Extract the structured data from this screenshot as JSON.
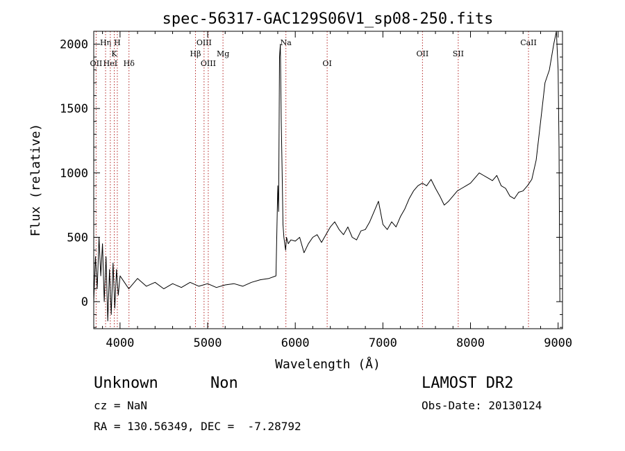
{
  "chart_data": {
    "type": "line",
    "title": "spec-56317-GAC129S06V1_sp08-250.fits",
    "xlabel": "Wavelength (Å)",
    "ylabel": "Flux (relative)",
    "xlim": [
      3700,
      9050
    ],
    "ylim": [
      -210,
      2100
    ],
    "x_ticks": [
      4000,
      5000,
      6000,
      7000,
      8000,
      9000
    ],
    "y_ticks": [
      0,
      500,
      1000,
      1500,
      2000
    ],
    "grid": false,
    "line_color": "#000000",
    "marker_color": "#b22222",
    "series": [
      {
        "x": [
          3700,
          3720,
          3740,
          3760,
          3780,
          3800,
          3820,
          3840,
          3860,
          3880,
          3900,
          3920,
          3940,
          3960,
          3980,
          4000,
          4050,
          4100,
          4200,
          4300,
          4400,
          4500,
          4600,
          4700,
          4800,
          4900,
          5000,
          5100,
          5200,
          5300,
          5400,
          5500,
          5600,
          5700,
          5780,
          5800,
          5810,
          5820,
          5830,
          5840,
          5850,
          5860,
          5870,
          5880,
          5890,
          5900,
          5920,
          5950,
          6000,
          6050,
          6100,
          6150,
          6200,
          6250,
          6300,
          6350,
          6400,
          6450,
          6500,
          6550,
          6600,
          6650,
          6700,
          6750,
          6800,
          6850,
          6900,
          6950,
          7000,
          7050,
          7100,
          7150,
          7200,
          7250,
          7300,
          7350,
          7400,
          7450,
          7500,
          7550,
          7600,
          7650,
          7700,
          7750,
          7800,
          7850,
          7900,
          7950,
          8000,
          8050,
          8100,
          8150,
          8200,
          8250,
          8300,
          8350,
          8400,
          8450,
          8500,
          8550,
          8600,
          8650,
          8700,
          8750,
          8800,
          8850,
          8900,
          8950,
          8980,
          9000,
          9010,
          9020
        ],
        "y": [
          0,
          350,
          100,
          500,
          200,
          450,
          0,
          350,
          -150,
          250,
          -100,
          300,
          -50,
          250,
          50,
          200,
          150,
          100,
          180,
          120,
          150,
          100,
          140,
          110,
          150,
          120,
          140,
          110,
          130,
          140,
          120,
          150,
          170,
          180,
          200,
          900,
          700,
          1900,
          2000,
          1400,
          1000,
          600,
          500,
          450,
          400,
          500,
          450,
          480,
          470,
          500,
          380,
          450,
          500,
          520,
          460,
          520,
          580,
          620,
          560,
          520,
          580,
          500,
          480,
          550,
          560,
          620,
          700,
          780,
          600,
          560,
          620,
          580,
          660,
          720,
          800,
          860,
          900,
          920,
          900,
          950,
          880,
          820,
          750,
          780,
          820,
          860,
          880,
          900,
          920,
          960,
          1000,
          980,
          960,
          940,
          980,
          900,
          880,
          820,
          800,
          850,
          860,
          900,
          950,
          1100,
          1400,
          1700,
          1800,
          2000,
          2100,
          1800,
          1200,
          0
        ]
      }
    ],
    "lines": [
      {
        "label": "OII",
        "x": 3727
      },
      {
        "label": "Hη",
        "x": 3835
      },
      {
        "label": "HeI",
        "x": 3889
      },
      {
        "label": "K",
        "x": 3934
      },
      {
        "label": "H",
        "x": 3969
      },
      {
        "label": "Hδ",
        "x": 4102
      },
      {
        "label": "Hβ",
        "x": 4861
      },
      {
        "label": "OIII",
        "x": 4959
      },
      {
        "label": "OIII",
        "x": 5007
      },
      {
        "label": "Mg",
        "x": 5175
      },
      {
        "label": "Na",
        "x": 5893
      },
      {
        "label": "OI",
        "x": 6364
      },
      {
        "label": "OII",
        "x": 7452
      },
      {
        "label": "SII",
        "x": 7860
      },
      {
        "label": "CaII",
        "x": 8662
      }
    ]
  },
  "info": {
    "class_left": "Unknown",
    "class_right": "Non",
    "survey": "LAMOST DR2",
    "cz": "cz = NaN",
    "obs_date": "Obs-Date: 20130124",
    "coords": "RA = 130.56349, DEC =  -7.28792"
  }
}
